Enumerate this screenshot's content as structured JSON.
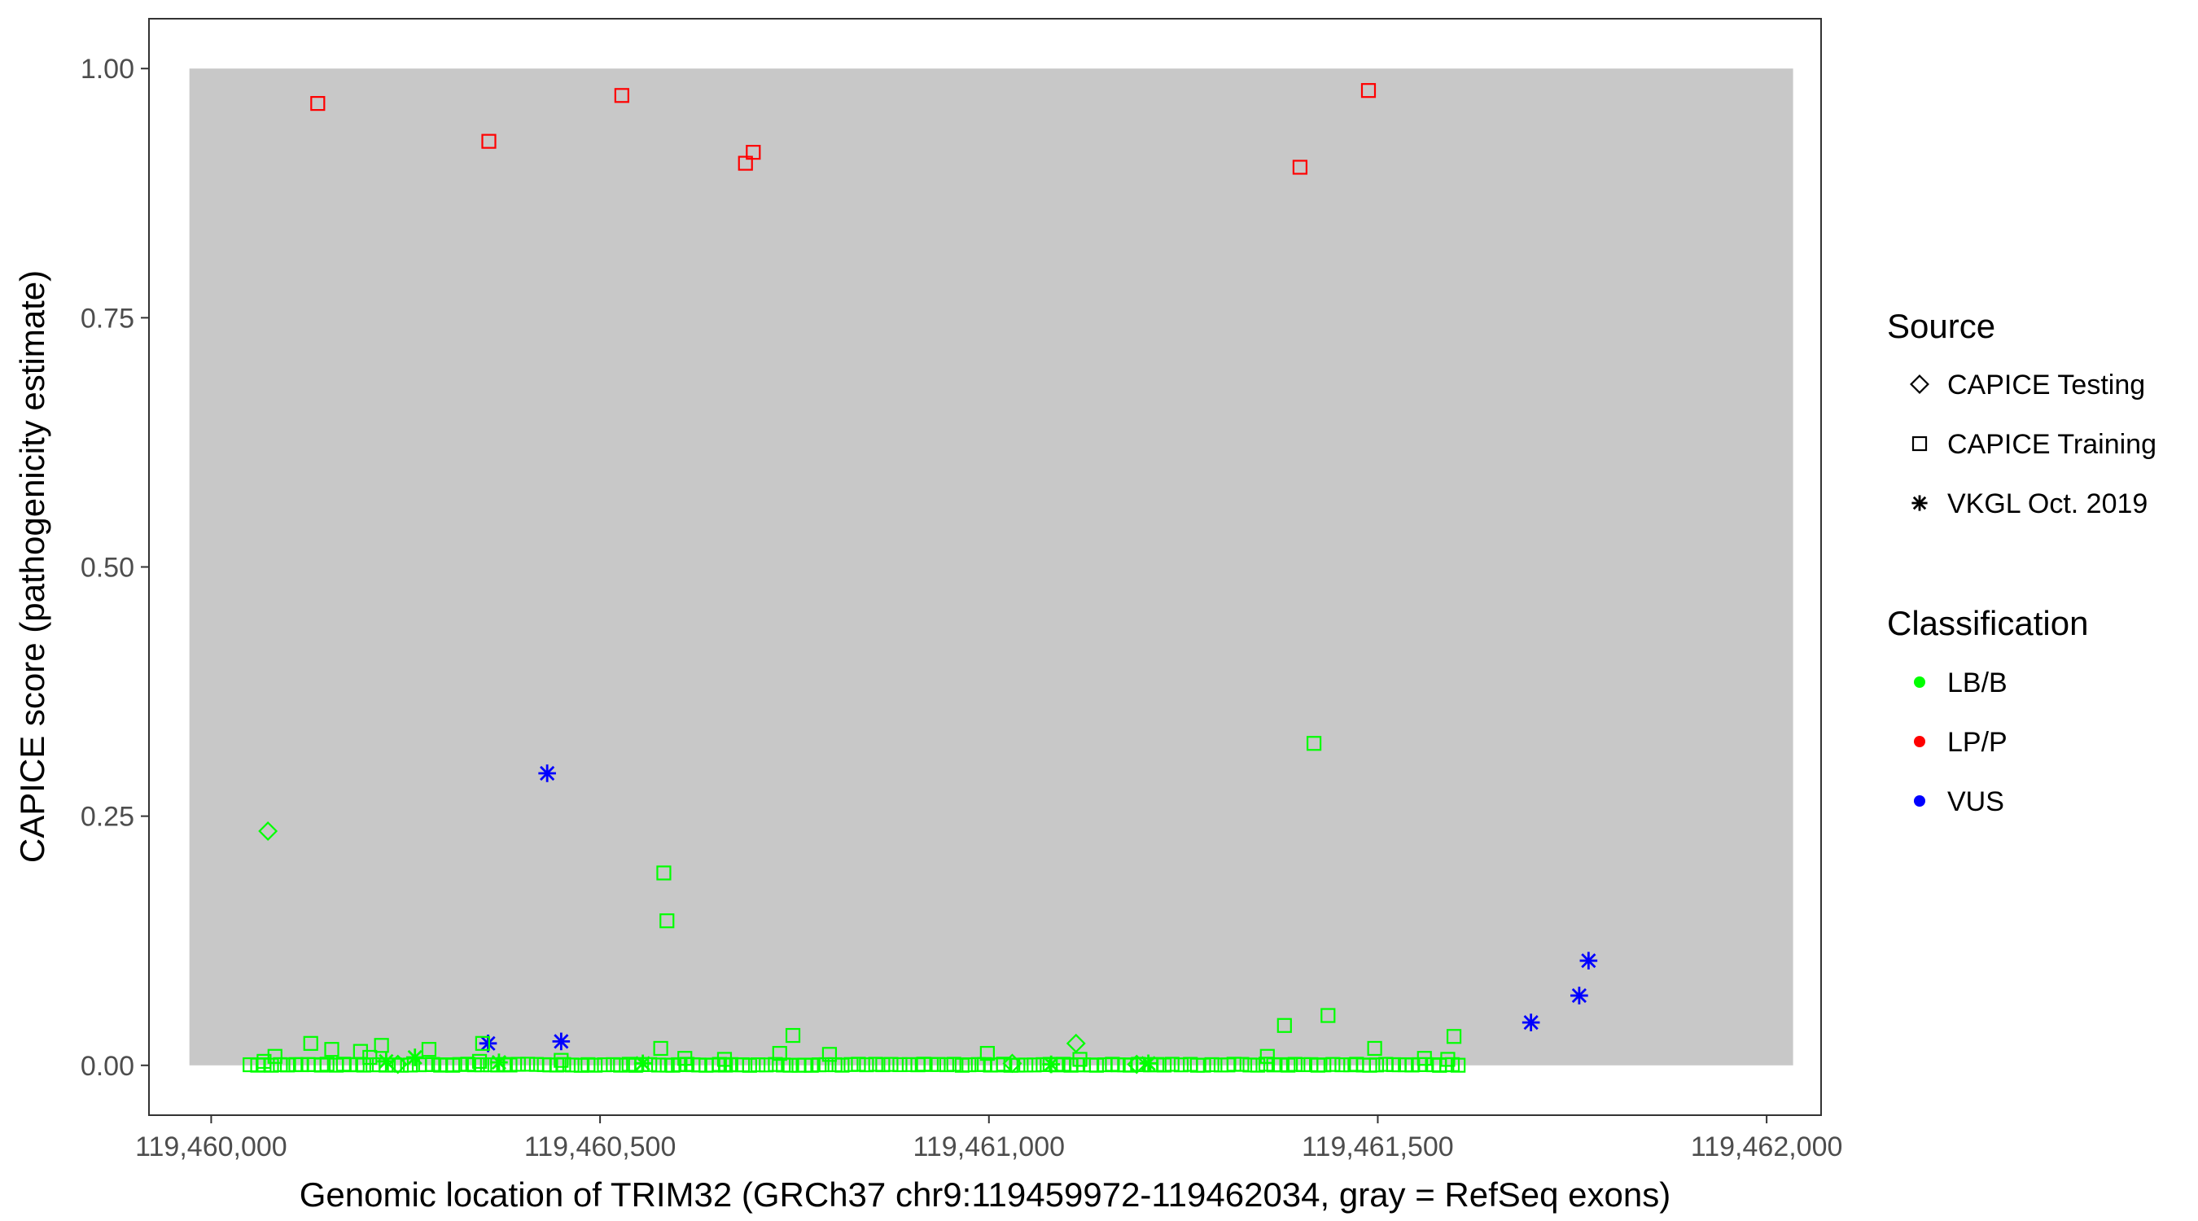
{
  "chart_data": {
    "type": "scatter",
    "xlabel": "Genomic location of TRIM32 (GRCh37 chr9:119459972-119462034, gray = RefSeq exons)",
    "ylabel": "CAPICE score (pathogenicity estimate)",
    "xlim": [
      119459920,
      119462070
    ],
    "ylim": [
      -0.05,
      1.05
    ],
    "x_ticks": [
      119460000,
      119460500,
      119461000,
      119461500,
      119462000
    ],
    "x_tick_labels": [
      "119,460,000",
      "119,460,500",
      "119,461,000",
      "119,461,500",
      "119,462,000"
    ],
    "y_ticks": [
      0,
      0.25,
      0.5,
      0.75,
      1
    ],
    "y_tick_labels": [
      "0.00",
      "0.25",
      "0.50",
      "0.75",
      "1.00"
    ],
    "grid": false,
    "background_band": {
      "x": [
        119459972,
        119462034
      ],
      "y": [
        0,
        1
      ],
      "color": "#c8c8c8"
    },
    "legend_position": "right",
    "legend": {
      "source": {
        "title": "Source",
        "items": [
          {
            "label": "CAPICE Testing",
            "shape": "diamond"
          },
          {
            "label": "CAPICE Training",
            "shape": "square"
          },
          {
            "label": "VKGL Oct. 2019",
            "shape": "asterisk"
          }
        ]
      },
      "classification": {
        "title": "Classification",
        "items": [
          {
            "label": "LB/B",
            "color": "#00ff00"
          },
          {
            "label": "LP/P",
            "color": "#ff0000"
          },
          {
            "label": "VUS",
            "color": "#0000ff"
          }
        ]
      }
    },
    "series": [
      {
        "name": "LP/P",
        "source": "CAPICE Training",
        "shape": "square",
        "color": "#ff0000",
        "x": [
          119460137,
          119460357,
          119460528,
          119460687,
          119460697,
          119461400,
          119461488
        ],
        "y": [
          0.965,
          0.927,
          0.973,
          0.905,
          0.916,
          0.901,
          0.978
        ]
      },
      {
        "name": "VUS",
        "source": "VKGL Oct. 2019",
        "shape": "asterisk",
        "color": "#0000ff",
        "x": [
          119460432,
          119460450,
          119460356,
          119461697,
          119461759,
          119461771
        ],
        "y": [
          0.293,
          0.024,
          0.022,
          0.043,
          0.07,
          0.105
        ]
      },
      {
        "name": "LB/B",
        "source": "CAPICE Testing",
        "shape": "diamond",
        "color": "#00ff00",
        "x": [
          119460073,
          119461112,
          119461030,
          119461190,
          119460240
        ],
        "y": [
          0.235,
          0.022,
          0.002,
          0.001,
          0.001
        ]
      },
      {
        "name": "LB/B",
        "source": "VKGL Oct. 2019",
        "shape": "asterisk",
        "color": "#00ff00",
        "x": [
          119460225,
          119460262,
          119460370,
          119460555,
          119461080,
          119461205
        ],
        "y": [
          0.004,
          0.008,
          0.003,
          0.002,
          0.001,
          0.002
        ]
      },
      {
        "name": "LB/B",
        "source": "CAPICE Training",
        "shape": "square",
        "color": "#00ff00",
        "x": [
          119460582,
          119460586,
          119461418,
          119461436,
          119461380,
          119461598,
          119460748,
          119460128,
          119460155,
          119460219,
          119460192,
          119460280,
          119460349,
          119460578,
          119460731,
          119460795,
          119460998,
          119461358,
          119461496,
          119461590,
          119460204,
          119460345,
          119460450,
          119460609,
          119460660,
          119461117,
          119460068,
          119460082,
          119461560
        ],
        "y": [
          0.193,
          0.145,
          0.323,
          0.05,
          0.04,
          0.029,
          0.03,
          0.022,
          0.016,
          0.02,
          0.014,
          0.016,
          0.022,
          0.017,
          0.012,
          0.011,
          0.012,
          0.009,
          0.017,
          0.006,
          0.008,
          0.004,
          0.005,
          0.007,
          0.006,
          0.006,
          0.004,
          0.009,
          0.007
        ]
      }
    ],
    "dense_baseline_cluster": {
      "description_color": "#00ff00",
      "shape": "square",
      "x_range": [
        119460050,
        119461605
      ],
      "y": 0.0
    }
  }
}
